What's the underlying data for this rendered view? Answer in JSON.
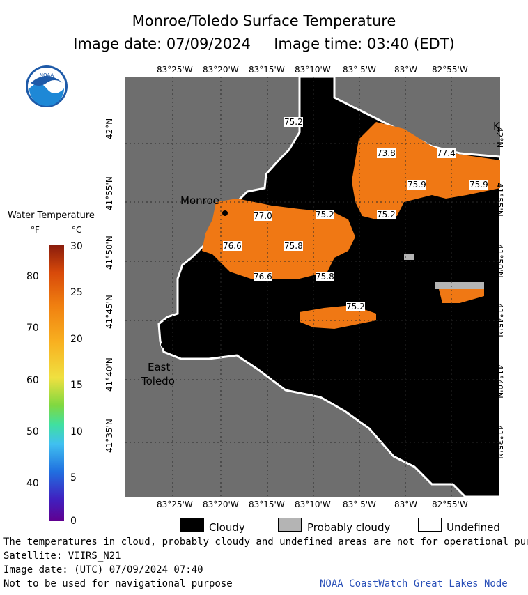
{
  "title": "Monroe/Toledo Surface Temperature",
  "subtitle": "Image date: 07/09/2024     Image time: 03:40 (EDT)",
  "logo_text": "NOAA",
  "colorbar": {
    "title": "Water Temperature",
    "unit_f": "°F",
    "unit_c": "°C",
    "f_ticks": [
      "80",
      "70",
      "60",
      "50",
      "40"
    ],
    "c_ticks": [
      "30",
      "25",
      "20",
      "15",
      "10",
      "5",
      "0"
    ]
  },
  "map": {
    "lon_labels": [
      "83°25'W",
      "83°20'W",
      "83°15'W",
      "83°10'W",
      "83° 5'W",
      "83°W",
      "82°55'W"
    ],
    "lat_labels": [
      "42°N",
      "41°55'N",
      "41°50'N",
      "41°45'N",
      "41°40'N",
      "41°35'N"
    ],
    "places": [
      "Monroe",
      "East",
      "Toledo",
      "K"
    ],
    "temps": [
      "75.2",
      "73.8",
      "77.4",
      "75.9",
      "75.9",
      "77.0",
      "75.2",
      "75.2",
      "76.6",
      "75.8",
      "76.6",
      "75.8",
      "75.2"
    ],
    "colors": {
      "land": "#6e6e6e",
      "cloud": "#000000",
      "probably_cloudy": "#b4b4b4",
      "undefined": "#ffffff",
      "water_warm": "#f07814"
    }
  },
  "legend": {
    "cloudy": "Cloudy",
    "probably_cloudy": "Probably cloudy",
    "undefined": "Undefined"
  },
  "footer": {
    "line1": "The temperatures in cloud, probably cloudy and undefined areas are not for operational pur",
    "line2": "Satellite: VIIRS_N21",
    "line3": "Image date: (UTC) 07/09/2024  07:40",
    "line4": "Not to be used for navigational purpose",
    "credit": "NOAA CoastWatch Great Lakes Node"
  }
}
